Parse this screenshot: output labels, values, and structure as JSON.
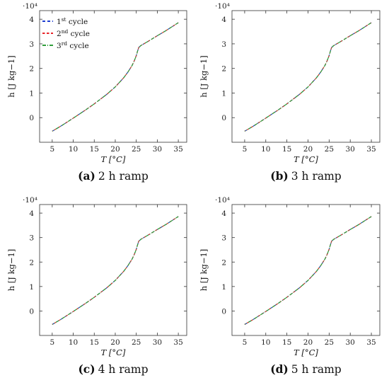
{
  "legend": {
    "entries": [
      {
        "base": "1",
        "sup": "st",
        "rest": " cycle",
        "color": "#1f3fd1"
      },
      {
        "base": "2",
        "sup": "nd",
        "rest": " cycle",
        "color": "#e8262b"
      },
      {
        "base": "3",
        "sup": "rd",
        "rest": " cycle",
        "color": "#2f9e3a"
      }
    ]
  },
  "chart_data": [
    {
      "type": "line",
      "caption_letter": "(a)",
      "caption_text": "2 h ramp",
      "xlabel": "T [°C]",
      "ylabel": "h [J kg−1]",
      "y_multiplier": "·10⁴",
      "xlim": [
        2,
        37
      ],
      "ylim": [
        -1.0,
        4.35
      ],
      "xticks": [
        5,
        10,
        15,
        20,
        25,
        30,
        35
      ],
      "yticks": [
        0,
        1,
        2,
        3,
        4
      ],
      "legend": "top-left",
      "x": [
        5,
        7,
        10,
        13,
        15,
        18,
        20,
        22,
        23,
        24,
        24.5,
        25,
        25.3,
        25.6,
        25.8,
        26,
        28,
        30,
        32,
        35
      ],
      "series": [
        {
          "name": "1st cycle",
          "values": [
            -0.55,
            -0.35,
            -0.02,
            0.32,
            0.56,
            0.95,
            1.25,
            1.62,
            1.85,
            2.12,
            2.3,
            2.52,
            2.7,
            2.86,
            2.88,
            2.92,
            3.12,
            3.33,
            3.53,
            3.86
          ]
        },
        {
          "name": "2nd cycle",
          "values": [
            -0.55,
            -0.35,
            -0.02,
            0.32,
            0.56,
            0.95,
            1.25,
            1.62,
            1.85,
            2.12,
            2.3,
            2.52,
            2.7,
            2.86,
            2.88,
            2.92,
            3.12,
            3.33,
            3.53,
            3.86
          ]
        },
        {
          "name": "3rd cycle",
          "values": [
            -0.55,
            -0.35,
            -0.02,
            0.32,
            0.56,
            0.95,
            1.25,
            1.62,
            1.85,
            2.12,
            2.3,
            2.52,
            2.7,
            2.86,
            2.88,
            2.92,
            3.12,
            3.33,
            3.53,
            3.86
          ]
        }
      ]
    },
    {
      "type": "line",
      "caption_letter": "(b)",
      "caption_text": "3 h ramp",
      "xlabel": "T [°C]",
      "ylabel": "h [J kg−1]",
      "y_multiplier": "·10⁴",
      "xlim": [
        2,
        37
      ],
      "ylim": [
        -1.0,
        4.35
      ],
      "xticks": [
        5,
        10,
        15,
        20,
        25,
        30,
        35
      ],
      "yticks": [
        0,
        1,
        2,
        3,
        4
      ],
      "x": [
        5,
        7,
        10,
        13,
        15,
        18,
        20,
        22,
        23,
        24,
        24.5,
        25,
        25.3,
        25.6,
        25.8,
        26,
        28,
        30,
        32,
        35
      ],
      "series": [
        {
          "name": "1st cycle",
          "values": [
            -0.55,
            -0.35,
            -0.02,
            0.32,
            0.56,
            0.95,
            1.25,
            1.62,
            1.85,
            2.12,
            2.3,
            2.52,
            2.7,
            2.86,
            2.88,
            2.92,
            3.12,
            3.33,
            3.53,
            3.86
          ]
        },
        {
          "name": "2nd cycle",
          "values": [
            -0.55,
            -0.35,
            -0.02,
            0.32,
            0.56,
            0.95,
            1.25,
            1.62,
            1.85,
            2.12,
            2.3,
            2.52,
            2.7,
            2.86,
            2.88,
            2.92,
            3.12,
            3.33,
            3.53,
            3.86
          ]
        },
        {
          "name": "3rd cycle",
          "values": [
            -0.55,
            -0.35,
            -0.02,
            0.32,
            0.56,
            0.95,
            1.25,
            1.62,
            1.85,
            2.12,
            2.3,
            2.52,
            2.7,
            2.86,
            2.88,
            2.92,
            3.12,
            3.33,
            3.53,
            3.86
          ]
        }
      ]
    },
    {
      "type": "line",
      "caption_letter": "(c)",
      "caption_text": "4 h ramp",
      "xlabel": "T [°C]",
      "ylabel": "h [J kg−1]",
      "y_multiplier": "·10⁴",
      "xlim": [
        2,
        37
      ],
      "ylim": [
        -1.0,
        4.35
      ],
      "xticks": [
        5,
        10,
        15,
        20,
        25,
        30,
        35
      ],
      "yticks": [
        0,
        1,
        2,
        3,
        4
      ],
      "x": [
        5,
        7,
        10,
        13,
        15,
        18,
        20,
        22,
        23,
        24,
        24.5,
        25,
        25.3,
        25.6,
        25.8,
        26,
        28,
        30,
        32,
        35
      ],
      "series": [
        {
          "name": "1st cycle",
          "values": [
            -0.55,
            -0.35,
            -0.02,
            0.32,
            0.56,
            0.95,
            1.25,
            1.62,
            1.85,
            2.12,
            2.3,
            2.52,
            2.7,
            2.86,
            2.88,
            2.92,
            3.12,
            3.33,
            3.53,
            3.86
          ]
        },
        {
          "name": "2nd cycle",
          "values": [
            -0.55,
            -0.35,
            -0.02,
            0.32,
            0.56,
            0.95,
            1.25,
            1.62,
            1.85,
            2.12,
            2.3,
            2.52,
            2.7,
            2.86,
            2.88,
            2.92,
            3.12,
            3.33,
            3.53,
            3.86
          ]
        },
        {
          "name": "3rd cycle",
          "values": [
            -0.55,
            -0.35,
            -0.02,
            0.32,
            0.56,
            0.95,
            1.25,
            1.62,
            1.85,
            2.12,
            2.3,
            2.52,
            2.7,
            2.86,
            2.88,
            2.92,
            3.12,
            3.33,
            3.53,
            3.86
          ]
        }
      ]
    },
    {
      "type": "line",
      "caption_letter": "(d)",
      "caption_text": "5 h ramp",
      "xlabel": "T [°C]",
      "ylabel": "h [J kg−1]",
      "y_multiplier": "·10⁴",
      "xlim": [
        2,
        37
      ],
      "ylim": [
        -1.0,
        4.35
      ],
      "xticks": [
        5,
        10,
        15,
        20,
        25,
        30,
        35
      ],
      "yticks": [
        0,
        1,
        2,
        3,
        4
      ],
      "x": [
        5,
        7,
        10,
        13,
        15,
        18,
        20,
        22,
        23,
        24,
        24.5,
        25,
        25.3,
        25.6,
        25.8,
        26,
        28,
        30,
        32,
        35
      ],
      "series": [
        {
          "name": "1st cycle",
          "values": [
            -0.55,
            -0.35,
            -0.02,
            0.32,
            0.56,
            0.95,
            1.25,
            1.62,
            1.85,
            2.12,
            2.3,
            2.52,
            2.7,
            2.86,
            2.88,
            2.92,
            3.12,
            3.33,
            3.53,
            3.86
          ]
        },
        {
          "name": "2nd cycle",
          "values": [
            -0.55,
            -0.35,
            -0.02,
            0.32,
            0.56,
            0.95,
            1.25,
            1.62,
            1.85,
            2.12,
            2.3,
            2.52,
            2.7,
            2.86,
            2.88,
            2.92,
            3.12,
            3.33,
            3.53,
            3.86
          ]
        },
        {
          "name": "3rd cycle",
          "values": [
            -0.55,
            -0.35,
            -0.02,
            0.32,
            0.56,
            0.95,
            1.25,
            1.62,
            1.85,
            2.12,
            2.3,
            2.52,
            2.7,
            2.86,
            2.88,
            2.92,
            3.12,
            3.33,
            3.53,
            3.86
          ]
        }
      ]
    }
  ]
}
